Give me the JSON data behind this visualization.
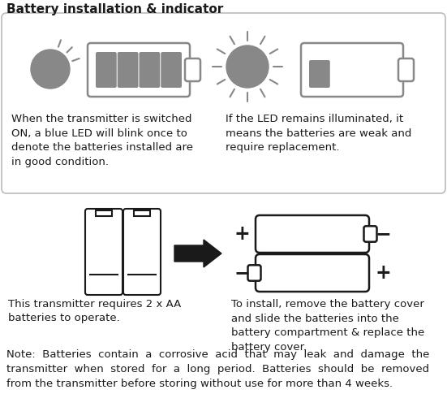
{
  "title": "Battery installation & indicator",
  "title_fontsize": 11,
  "body_fontsize": 9.5,
  "note_fontsize": 9.5,
  "bg_color": "#ffffff",
  "gray": "#888888",
  "border_gray": "#bbbbbb",
  "dark": "#1a1a1a",
  "text1": "When the transmitter is switched\nON, a blue LED will blink once to\ndenote the batteries installed are\nin good condition.",
  "text2": "If the LED remains illuminated, it\nmeans the batteries are weak and\nrequire replacement.",
  "text3": "This transmitter requires 2 x AA\nbatteries to operate.",
  "text4": "To install, remove the battery cover\nand slide the batteries into the\nbattery compartment & replace the\nbattery cover.",
  "note": "Note:  Batteries  contain  a  corrosive  acid  that  may  leak  and  damage  the\ntransmitter  when  stored  for  a  long  period.  Batteries  should  be  removed\nfrom the transmitter before storing without use for more than 4 weeks."
}
